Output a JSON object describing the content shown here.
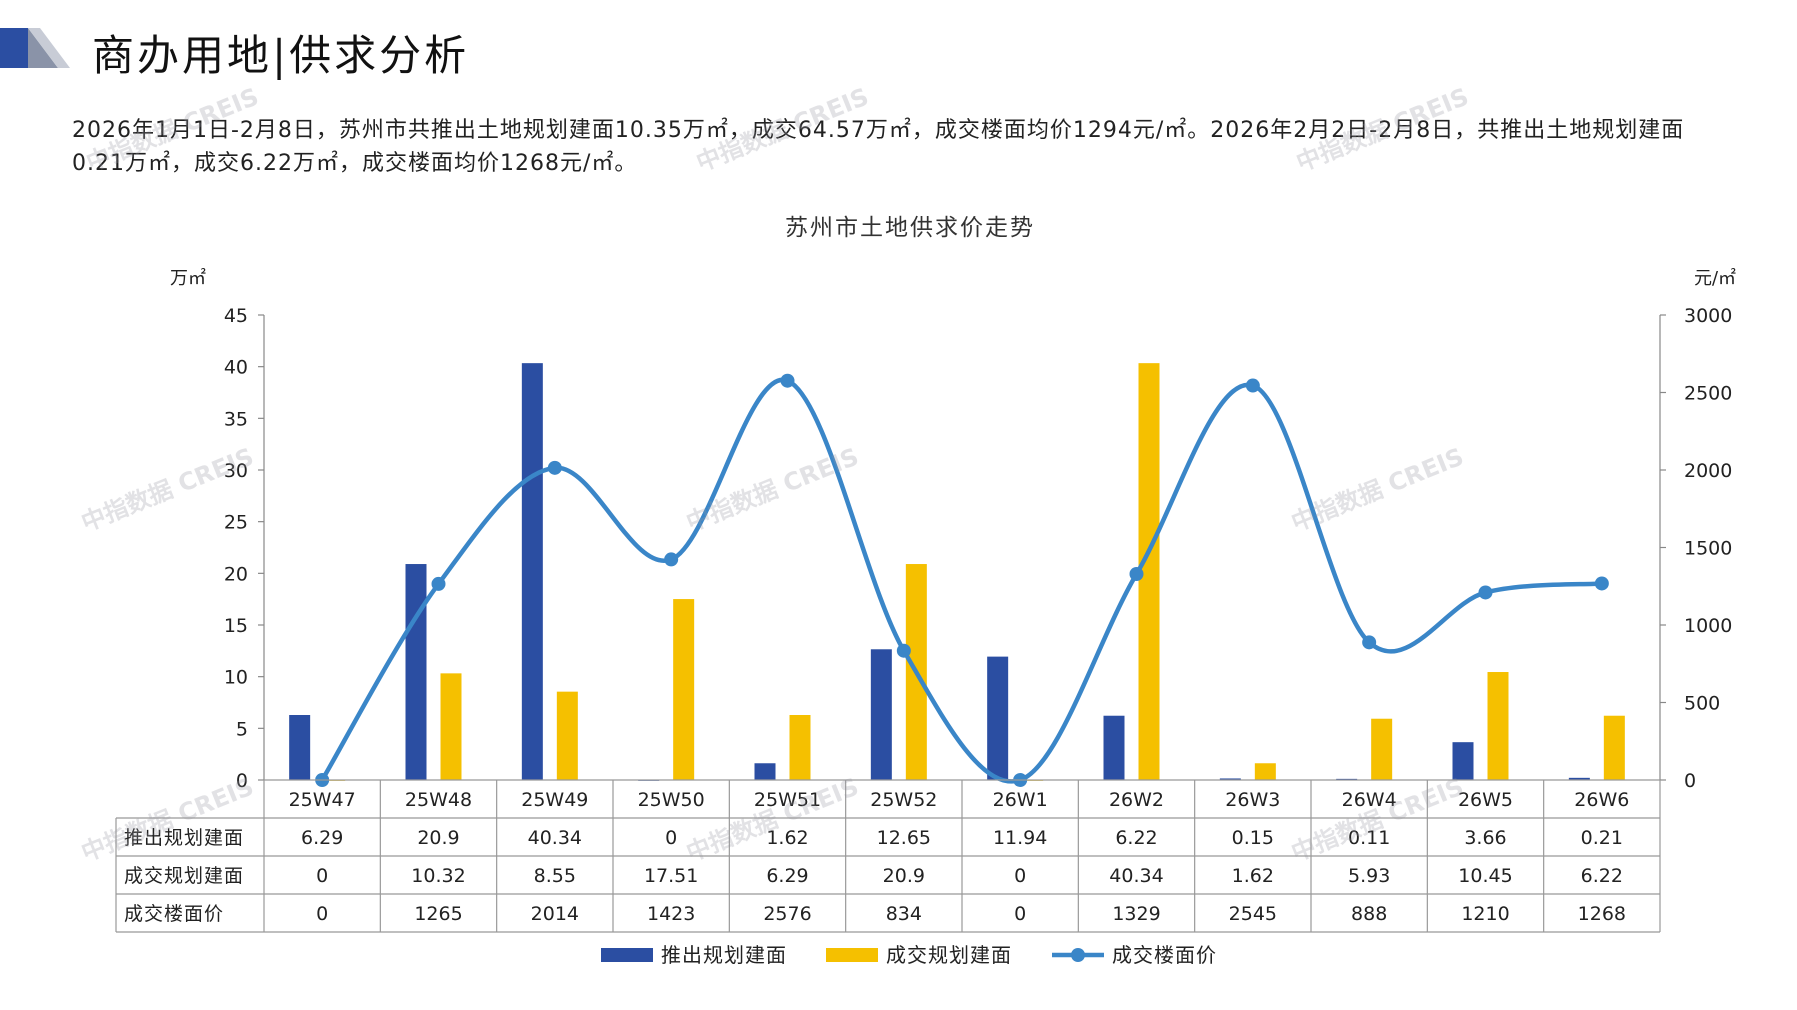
{
  "header": {
    "title": "商办用地|供求分析"
  },
  "summary": {
    "text": "2026年1月1日-2月8日，苏州市共推出土地规划建面10.35万㎡，成交64.57万㎡，成交楼面均价1294元/㎡。2026年2月2日-2月8日，共推出土地规划建面0.21万㎡，成交6.22万㎡，成交楼面均价1268元/㎡。"
  },
  "watermark": {
    "text": "中指数据 CREIS"
  },
  "chart_data": {
    "type": "bar",
    "title": "苏州市土地供求价走势",
    "y_left_unit": "万㎡",
    "y_right_unit": "元/㎡",
    "y_left_ticks": [
      "0",
      "5",
      "10",
      "15",
      "20",
      "25",
      "30",
      "35",
      "40",
      "45"
    ],
    "y_right_ticks": [
      "0",
      "500",
      "1000",
      "1500",
      "2000",
      "2500",
      "3000"
    ],
    "ylim_left": [
      0,
      45
    ],
    "ylim_right": [
      0,
      3000
    ],
    "categories": [
      "25W47",
      "25W48",
      "25W49",
      "25W50",
      "25W51",
      "25W52",
      "26W1",
      "26W2",
      "26W3",
      "26W4",
      "26W5",
      "26W6"
    ],
    "series": [
      {
        "name": "推出规划建面",
        "kind": "bar",
        "axis": "left",
        "color": "#2b4ea2",
        "labels": [
          "6.29",
          "20.9",
          "40.34",
          "0",
          "1.62",
          "12.65",
          "11.94",
          "6.22",
          "0.15",
          "0.11",
          "3.66",
          "0.21"
        ],
        "values": [
          6.29,
          20.9,
          40.34,
          0,
          1.62,
          12.65,
          11.94,
          6.22,
          0.15,
          0.11,
          3.66,
          0.21
        ]
      },
      {
        "name": "成交规划建面",
        "kind": "bar",
        "axis": "left",
        "color": "#f5c000",
        "labels": [
          "0",
          "10.32",
          "8.55",
          "17.51",
          "6.29",
          "20.9",
          "0",
          "40.34",
          "1.62",
          "5.93",
          "10.45",
          "6.22"
        ],
        "values": [
          0,
          10.32,
          8.55,
          17.51,
          6.29,
          20.9,
          0,
          40.34,
          1.62,
          5.93,
          10.45,
          6.22
        ]
      },
      {
        "name": "成交楼面价",
        "kind": "line",
        "axis": "right",
        "color": "#3a86c8",
        "labels": [
          "0",
          "1265",
          "2014",
          "1423",
          "2576",
          "834",
          "0",
          "1329",
          "2545",
          "888",
          "1210",
          "1268"
        ],
        "values": [
          0,
          1265,
          2014,
          1423,
          2576,
          834,
          0,
          1329,
          2545,
          888,
          1210,
          1268
        ]
      }
    ],
    "legend_position": "bottom",
    "grid": false
  }
}
